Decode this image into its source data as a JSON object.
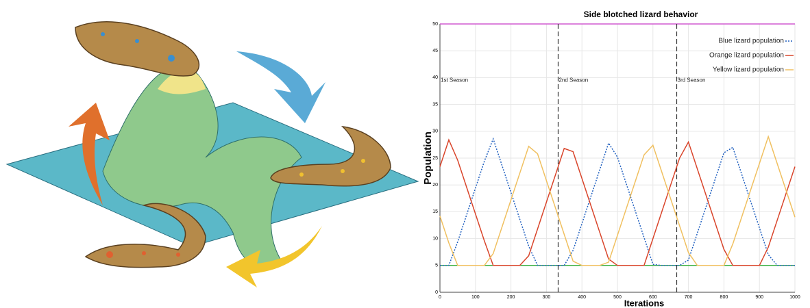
{
  "chart_data": {
    "type": "line",
    "title": "Side blotched lizard behavior",
    "xlabel": "Iterations",
    "ylabel": "Population",
    "x": [
      0,
      25,
      50,
      75,
      100,
      125,
      150,
      175,
      200,
      225,
      250,
      275,
      300,
      325,
      350,
      375,
      400,
      425,
      450,
      475,
      500,
      525,
      550,
      575,
      600,
      625,
      650,
      675,
      700,
      725,
      750,
      775,
      800,
      825,
      850,
      875,
      900,
      925,
      950,
      975,
      1000
    ],
    "series": [
      {
        "name": "Blue lizard population",
        "color": "#1f5fbf",
        "dash": "2 2",
        "values": [
          5,
          5,
          9.4,
          14.4,
          19.4,
          24.4,
          28.6,
          23.6,
          18.6,
          13.6,
          8.6,
          5,
          5,
          5,
          5,
          7.8,
          12.8,
          17.8,
          22.8,
          27.8,
          25.2,
          20.2,
          15.2,
          10.2,
          5.2,
          5,
          5,
          5,
          6,
          11,
          16,
          21,
          26,
          27,
          22,
          17,
          12,
          7,
          5,
          5,
          5
        ]
      },
      {
        "name": "Orange lizard population",
        "color": "#d9452b",
        "dash": "none",
        "values": [
          23.4,
          28.4,
          24.6,
          19.6,
          14.6,
          9.6,
          5,
          5,
          5,
          5,
          6.8,
          11.8,
          16.8,
          21.8,
          26.8,
          26.2,
          21.2,
          16.2,
          11.2,
          6.2,
          5,
          5,
          5,
          5,
          10,
          15,
          20,
          25,
          28,
          23,
          18,
          13,
          8,
          5,
          5,
          5,
          5,
          8.4,
          13.4,
          18.4,
          23.4
        ]
      },
      {
        "name": "Yellow lizard population",
        "color": "#f0c060",
        "dash": "none",
        "values": [
          14.2,
          9.2,
          5,
          5,
          5,
          5,
          7.2,
          12.2,
          17.2,
          22.2,
          27.2,
          25.8,
          20.8,
          15.8,
          10.8,
          5.8,
          5,
          5,
          5,
          5.6,
          10.6,
          15.6,
          20.6,
          25.6,
          27.4,
          22.4,
          17.4,
          12.4,
          7.4,
          5,
          5,
          5,
          5,
          9,
          14,
          19,
          24,
          29,
          24,
          19,
          14
        ]
      }
    ],
    "reference_lines": [
      {
        "value": 50,
        "color": "#d05ad0"
      },
      {
        "value": 5,
        "color": "#3cb043"
      }
    ],
    "season_lines": [
      333,
      667
    ],
    "annotations": [
      {
        "x": 0,
        "y": 40,
        "text": "1st Season"
      },
      {
        "x": 333,
        "y": 40,
        "text": "2nd Season"
      },
      {
        "x": 667,
        "y": 40,
        "text": "3rd Season"
      }
    ],
    "xlim": [
      0,
      1000
    ],
    "xticks": [
      0,
      100,
      200,
      300,
      400,
      500,
      600,
      700,
      800,
      900,
      1000
    ],
    "ylim": [
      0,
      50
    ],
    "yticks": [
      0,
      5,
      10,
      15,
      20,
      25,
      30,
      35,
      40,
      45,
      50
    ],
    "grid": true,
    "legend": "upper right"
  }
}
